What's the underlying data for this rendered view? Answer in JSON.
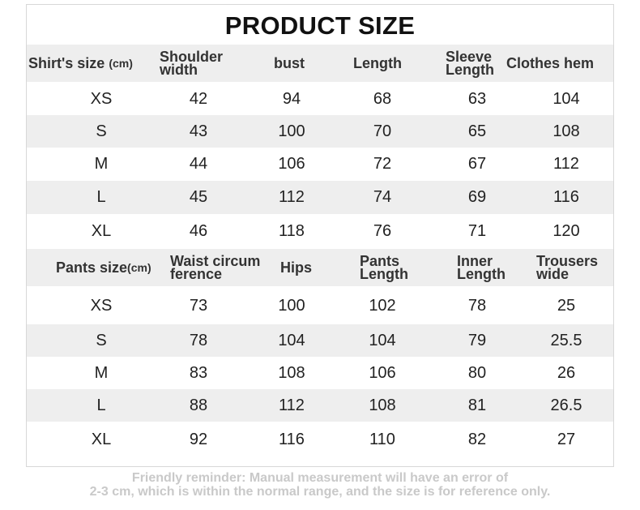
{
  "title": "PRODUCT SIZE",
  "shirt": {
    "header": {
      "size_label": "Shirt's size",
      "size_unit": "(cm)",
      "shoulder": "Shoulder width",
      "bust": "bust",
      "length": "Length",
      "sleeve": "Sleeve Length",
      "hem": "Clothes hem"
    },
    "rows": [
      [
        "XS",
        "42",
        "94",
        "68",
        "63",
        "104"
      ],
      [
        "S",
        "43",
        "100",
        "70",
        "65",
        "108"
      ],
      [
        "M",
        "44",
        "106",
        "72",
        "67",
        "112"
      ],
      [
        "L",
        "45",
        "112",
        "74",
        "69",
        "116"
      ],
      [
        "XL",
        "46",
        "118",
        "76",
        "71",
        "120"
      ]
    ]
  },
  "pants": {
    "header": {
      "size_label": "Pants size",
      "size_unit": "(cm)",
      "waist": "Waist circum ference",
      "hips": "Hips",
      "pants_length": "Pants Length",
      "inner_length": "Inner Length",
      "trousers_wide": "Trousers wide"
    },
    "rows": [
      [
        "XS",
        "73",
        "100",
        "102",
        "78",
        "25"
      ],
      [
        "S",
        "78",
        "104",
        "104",
        "79",
        "25.5"
      ],
      [
        "M",
        "83",
        "108",
        "106",
        "80",
        "26"
      ],
      [
        "L",
        "88",
        "112",
        "108",
        "81",
        "26.5"
      ],
      [
        "XL",
        "92",
        "116",
        "110",
        "82",
        "27"
      ]
    ]
  },
  "footnote": {
    "line1": "Friendly reminder: Manual measurement will have an error of",
    "line2": "2-3 cm, which is within the normal range, and the size is for reference only."
  }
}
